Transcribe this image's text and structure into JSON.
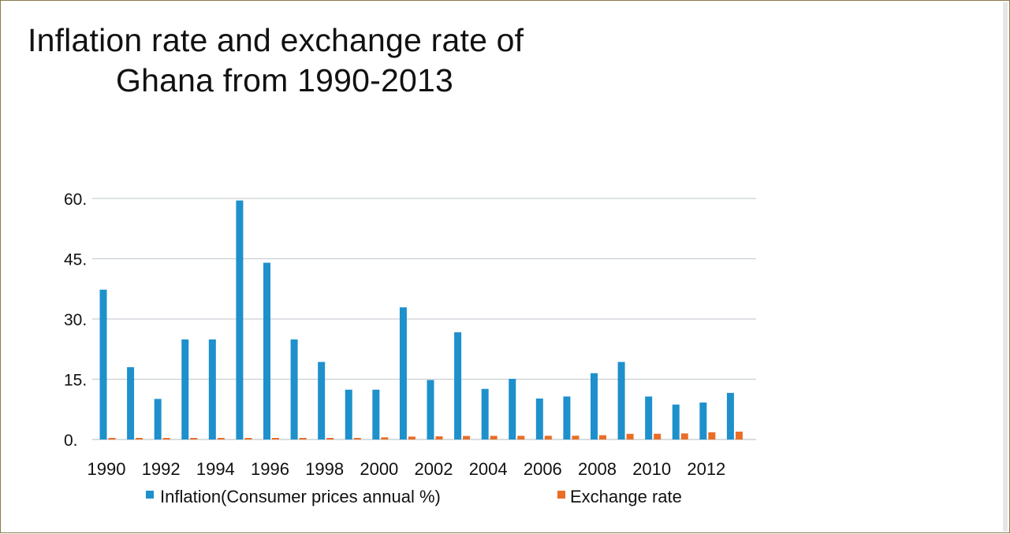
{
  "chart_data": {
    "type": "bar",
    "title_lines": [
      "Inflation rate  and exchange rate of",
      "Ghana from 1990-2013"
    ],
    "categories": [
      "1990",
      "1991",
      "1992",
      "1993",
      "1994",
      "1995",
      "1996",
      "1997",
      "1998",
      "1999",
      "2000",
      "2001",
      "2002",
      "2003",
      "2004",
      "2005",
      "2006",
      "2007",
      "2008",
      "2009",
      "2010",
      "2011",
      "2012",
      "2013"
    ],
    "x_tick_labels": [
      "1990",
      "",
      "1992",
      "",
      "1994",
      "",
      "1996",
      "",
      "1998",
      "",
      "2000",
      "",
      "2002",
      "",
      "2004",
      "",
      "2006",
      "",
      "2008",
      "",
      "2010",
      "",
      "2012",
      ""
    ],
    "y_tick_labels": [
      "0.",
      "15.",
      "30.",
      "45.",
      "60."
    ],
    "y_ticks": [
      0,
      15,
      30,
      45,
      60
    ],
    "ylim": [
      0,
      60
    ],
    "grid": true,
    "legend_position": "bottom",
    "series": [
      {
        "name": "Inflation(Consumer prices annual %)",
        "color": "#1e90cc",
        "values": [
          37.3,
          18.0,
          10.1,
          24.9,
          24.9,
          59.5,
          44.0,
          24.9,
          19.3,
          12.4,
          12.4,
          32.9,
          14.8,
          26.7,
          12.6,
          15.1,
          10.2,
          10.7,
          16.5,
          19.3,
          10.7,
          8.7,
          9.2,
          11.6
        ]
      },
      {
        "name": "Exchange rate",
        "color": "#ea6d27",
        "values": [
          0.03,
          0.04,
          0.04,
          0.06,
          0.1,
          0.12,
          0.16,
          0.2,
          0.23,
          0.27,
          0.54,
          0.72,
          0.79,
          0.87,
          0.9,
          0.91,
          0.92,
          0.94,
          1.06,
          1.41,
          1.43,
          1.51,
          1.8,
          1.95
        ]
      }
    ]
  }
}
